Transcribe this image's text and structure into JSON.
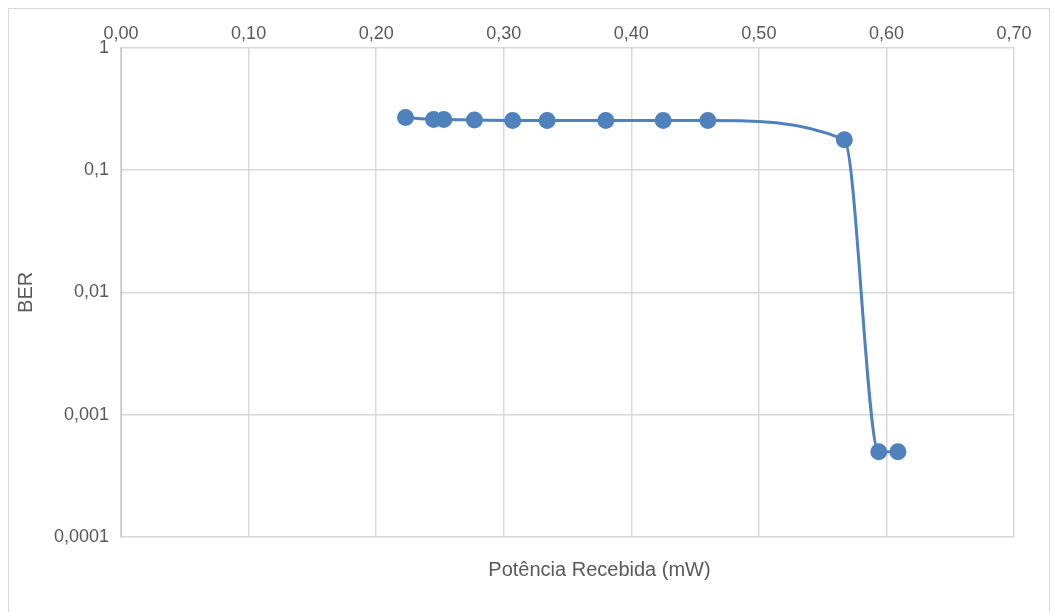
{
  "chart_data": {
    "type": "line",
    "xlabel": "Potência Recebida (mW)",
    "ylabel": "BER",
    "x": [
      0.223,
      0.245,
      0.253,
      0.277,
      0.307,
      0.334,
      0.38,
      0.425,
      0.46,
      0.567,
      0.594,
      0.609
    ],
    "series": [
      {
        "color": "#4f81bd",
        "values": [
          0.268,
          0.259,
          0.259,
          0.256,
          0.254,
          0.254,
          0.254,
          0.254,
          0.254,
          0.177,
          0.0005,
          0.0005
        ]
      }
    ],
    "xlim": [
      0,
      0.7
    ],
    "xticks": [
      {
        "value": 0,
        "label": "0,00"
      },
      {
        "value": 0.1,
        "label": "0,10"
      },
      {
        "value": 0.2,
        "label": "0,20"
      },
      {
        "value": 0.3,
        "label": "0,30"
      },
      {
        "value": 0.4,
        "label": "0,40"
      },
      {
        "value": 0.5,
        "label": "0,50"
      },
      {
        "value": 0.6,
        "label": "0,60"
      },
      {
        "value": 0.7,
        "label": "0,70"
      }
    ],
    "ylim": [
      0.0001,
      1
    ],
    "yticks": [
      {
        "value": 0.0001,
        "label": "0,0001"
      },
      {
        "value": 0.001,
        "label": "0,001"
      },
      {
        "value": 0.01,
        "label": "0,01"
      },
      {
        "value": 0.1,
        "label": "0,1"
      },
      {
        "value": 1,
        "label": "1"
      }
    ],
    "log": "y",
    "grid": true,
    "marker": "circle",
    "line_style": "solid",
    "legend": false
  }
}
